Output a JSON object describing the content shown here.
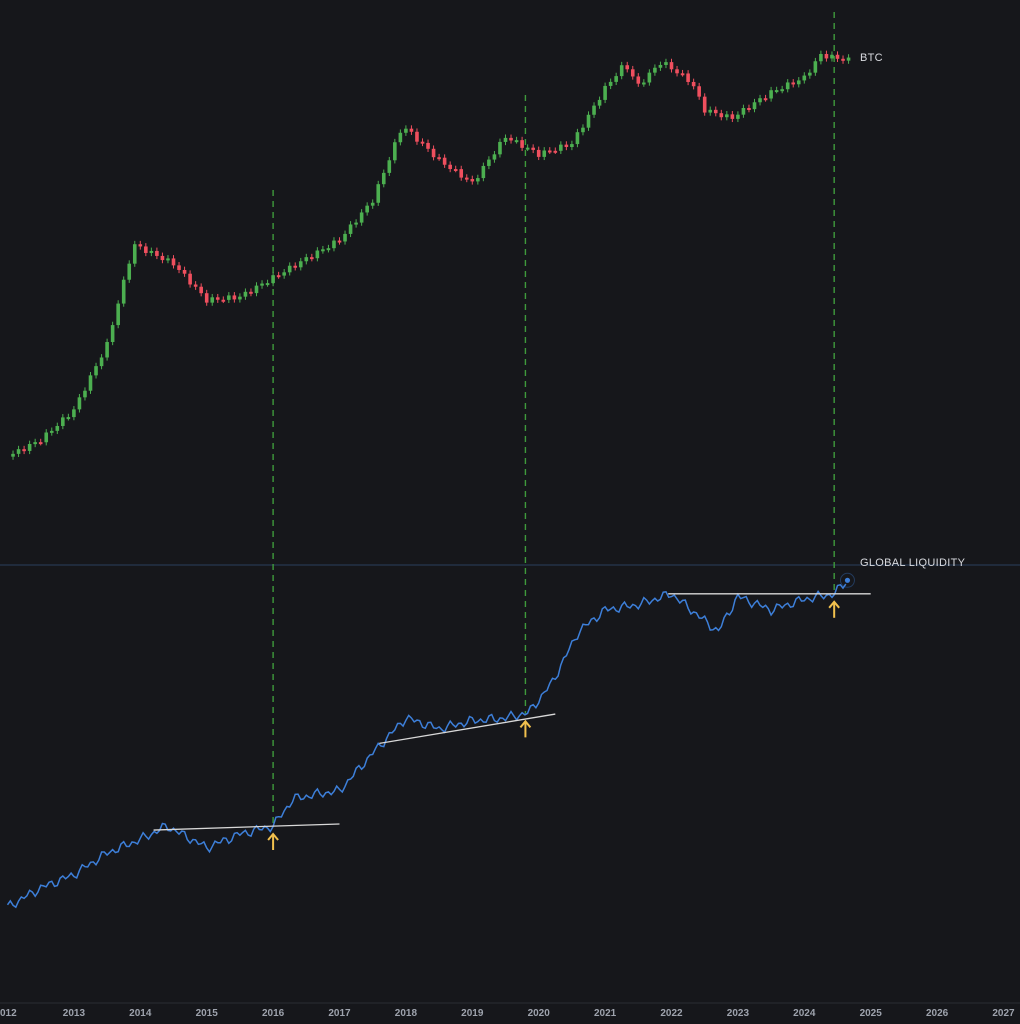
{
  "chart_data": [
    {
      "type": "candlestick",
      "log_scale": true,
      "series_label": "BTC",
      "colors": {
        "up": "#4caf50",
        "down": "#ef4f5e"
      },
      "x_range": [
        2012.0,
        2027.0
      ],
      "y_range_usd": [
        5,
        100000
      ],
      "candles_year_close": [
        [
          2012.0,
          6.8
        ],
        [
          2012.5,
          10
        ],
        [
          2013.0,
          20
        ],
        [
          2013.5,
          90
        ],
        [
          2013.9,
          900
        ],
        [
          2014.5,
          580
        ],
        [
          2015.0,
          250
        ],
        [
          2015.5,
          270
        ],
        [
          2016.0,
          420
        ],
        [
          2016.5,
          650
        ],
        [
          2017.0,
          1000
        ],
        [
          2017.5,
          2500
        ],
        [
          2017.95,
          14000
        ],
        [
          2018.5,
          6300
        ],
        [
          2019.0,
          3700
        ],
        [
          2019.5,
          10800
        ],
        [
          2020.0,
          7200
        ],
        [
          2020.5,
          9200
        ],
        [
          2021.0,
          33000
        ],
        [
          2021.3,
          58000
        ],
        [
          2021.5,
          35000
        ],
        [
          2021.85,
          61000
        ],
        [
          2022.3,
          38000
        ],
        [
          2022.5,
          20000
        ],
        [
          2022.9,
          16500
        ],
        [
          2023.5,
          30000
        ],
        [
          2024.0,
          42000
        ],
        [
          2024.25,
          71000
        ],
        [
          2024.65,
          63000
        ]
      ]
    },
    {
      "type": "line",
      "series_label": "GLOBAL LIQUIDITY",
      "color": "#3d7fd9",
      "x_range": [
        2012.0,
        2027.0
      ],
      "points_relative": [
        [
          2012.0,
          0.0
        ],
        [
          2012.5,
          0.07
        ],
        [
          2013.0,
          0.12
        ],
        [
          2013.5,
          0.2
        ],
        [
          2014.0,
          0.25
        ],
        [
          2014.4,
          0.3
        ],
        [
          2015.0,
          0.22
        ],
        [
          2015.5,
          0.27
        ],
        [
          2016.0,
          0.3
        ],
        [
          2016.3,
          0.4
        ],
        [
          2016.7,
          0.42
        ],
        [
          2017.0,
          0.43
        ],
        [
          2017.5,
          0.57
        ],
        [
          2018.0,
          0.7
        ],
        [
          2018.5,
          0.66
        ],
        [
          2019.0,
          0.69
        ],
        [
          2019.5,
          0.7
        ],
        [
          2019.85,
          0.72
        ],
        [
          2020.2,
          0.83
        ],
        [
          2020.6,
          1.02
        ],
        [
          2021.0,
          1.1
        ],
        [
          2021.5,
          1.12
        ],
        [
          2022.0,
          1.16
        ],
        [
          2022.3,
          1.1
        ],
        [
          2022.7,
          1.02
        ],
        [
          2023.0,
          1.15
        ],
        [
          2023.5,
          1.1
        ],
        [
          2024.0,
          1.14
        ],
        [
          2024.45,
          1.16
        ],
        [
          2024.65,
          1.21
        ]
      ],
      "breakout_markers": [
        2016.0,
        2019.8,
        2024.45
      ]
    }
  ],
  "x_ticks": [
    "012",
    "2013",
    "2014",
    "2015",
    "2016",
    "2017",
    "2018",
    "2019",
    "2020",
    "2021",
    "2022",
    "2023",
    "2024",
    "2025",
    "2026",
    "2027"
  ],
  "colors": {
    "background": "#16171b",
    "dashed_line": "#3f9a3c",
    "trend_line": "#d8d8d8",
    "arrow": "#f2c14e",
    "axis_text": "#9ea3ad"
  }
}
